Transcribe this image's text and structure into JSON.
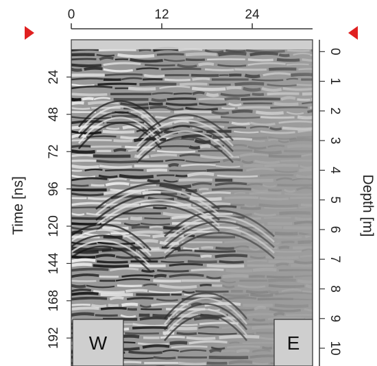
{
  "chart_data": {
    "type": "heatmap",
    "title": "",
    "top_axis": {
      "label": "",
      "range": [
        0,
        32
      ],
      "ticks": [
        0,
        12,
        24
      ],
      "tick_labels": [
        "0",
        "12",
        "24"
      ],
      "marker_color": "#e02020"
    },
    "left_axis": {
      "label": "Time [ns]",
      "range": [
        0,
        210
      ],
      "ticks": [
        24,
        48,
        72,
        96,
        120,
        144,
        168,
        192
      ],
      "tick_labels": [
        "24",
        "48",
        "72",
        "96",
        "120",
        "144",
        "168",
        "192"
      ]
    },
    "right_axis": {
      "label": "Depth [m]",
      "range": [
        -0.4,
        10.6
      ],
      "ticks": [
        0,
        1,
        2,
        3,
        4,
        5,
        6,
        7,
        8,
        9,
        10
      ],
      "tick_labels": [
        "0",
        "1",
        "2",
        "3",
        "4",
        "5",
        "6",
        "7",
        "8",
        "9",
        "10"
      ]
    },
    "corner_labels": {
      "left": "W",
      "right": "E"
    },
    "colormap": "grayscale",
    "grid": false,
    "legend": "none"
  }
}
